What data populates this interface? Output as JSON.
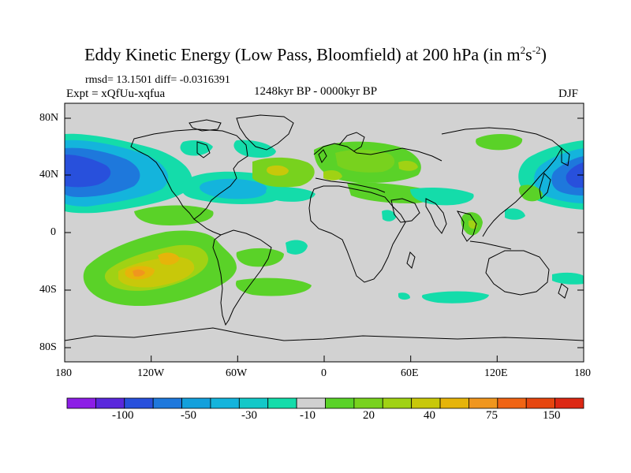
{
  "title": {
    "main": "Eddy Kinetic Energy (Low Pass, Bloomfield) at 200 hPa (in m",
    "sup1": "2",
    "mid": "s",
    "sup2": "-2",
    "close": ")"
  },
  "stats": "rmsd= 13.1501 diff= -0.0316391",
  "expt": "Expt = xQfUu-xqfua",
  "period": "1248kyr BP - 0000kyr BP",
  "season": "DJF",
  "x_ticks": [
    "180",
    "120W",
    "60W",
    "0",
    "60E",
    "120E",
    "180"
  ],
  "y_ticks": [
    "80N",
    "40N",
    "0",
    "40S",
    "80S"
  ],
  "legend": {
    "colors": [
      "#8c1ee6",
      "#5a28dc",
      "#2850dc",
      "#1e78dc",
      "#14a0dc",
      "#14b4dc",
      "#14c8c8",
      "#14dcaa",
      "#d0d0d0",
      "#5ad228",
      "#78d21e",
      "#a0d214",
      "#c8c80a",
      "#e6b40a",
      "#f0961e",
      "#f06414",
      "#e6460f",
      "#dc2814"
    ],
    "labels": [
      "-100",
      "-50",
      "-30",
      "-10",
      "20",
      "40",
      "75",
      "150"
    ]
  },
  "colors": {
    "ocean": "#d2d2d2",
    "coast": "#000000"
  }
}
